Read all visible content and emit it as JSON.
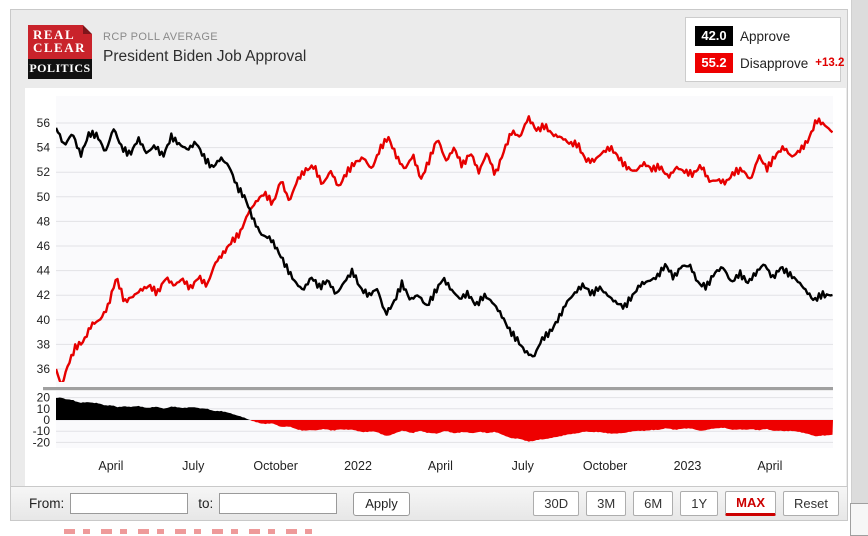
{
  "header": {
    "logo": {
      "line1": "REAL",
      "line2": "CLEAR",
      "line3": "POLITICS"
    },
    "kicker": "RCP POLL AVERAGE",
    "title": "President Biden Job Approval"
  },
  "legend": {
    "approve": {
      "value": "42.0",
      "label": "Approve",
      "color": "#000000"
    },
    "disapprove": {
      "value": "55.2",
      "label": "Disapprove",
      "spread": "+13.2",
      "color": "#ee0000"
    }
  },
  "controls": {
    "from_label": "From:",
    "to_label": "to:",
    "from_value": "",
    "to_value": "",
    "apply_label": "Apply",
    "range_buttons": [
      {
        "label": "30D",
        "active": false
      },
      {
        "label": "3M",
        "active": false
      },
      {
        "label": "6M",
        "active": false
      },
      {
        "label": "1Y",
        "active": false
      },
      {
        "label": "MAX",
        "active": true
      },
      {
        "label": "Reset",
        "active": false
      }
    ]
  },
  "colors": {
    "accent_red": "#e00000",
    "line_black": "#000000",
    "logo_red": "#c9232b",
    "grid": "#e2e2e6",
    "plot_bg": "#fafafc",
    "separator": "#a0a0a0"
  },
  "chart_data": {
    "type": "line",
    "title": "President Biden Job Approval",
    "x_unit": "months since Feb 2021",
    "x_range": [
      0,
      28.3
    ],
    "main_ylim": [
      34,
      57.5
    ],
    "main_yticks": [
      56,
      54,
      52,
      50,
      48,
      46,
      44,
      42,
      40,
      38,
      36
    ],
    "x_ticks": [
      [
        2,
        "April"
      ],
      [
        5,
        "July"
      ],
      [
        8,
        "October"
      ],
      [
        11,
        "2022"
      ],
      [
        14,
        "April"
      ],
      [
        17,
        "July"
      ],
      [
        20,
        "October"
      ],
      [
        23,
        "2023"
      ],
      [
        26,
        "April"
      ]
    ],
    "grid": true,
    "legend_position": "top-right",
    "series": [
      {
        "name": "Disapprove",
        "color": "#e60000",
        "final": 55.2,
        "anchors": [
          [
            0,
            36.0
          ],
          [
            0.2,
            34.8
          ],
          [
            0.4,
            36.2
          ],
          [
            0.7,
            37.6
          ],
          [
            1.0,
            38.0
          ],
          [
            1.3,
            39.6
          ],
          [
            1.6,
            40.2
          ],
          [
            1.9,
            41.3
          ],
          [
            2.2,
            43.4
          ],
          [
            2.5,
            41.2
          ],
          [
            2.8,
            41.8
          ],
          [
            3.1,
            42.6
          ],
          [
            3.4,
            43.0
          ],
          [
            3.7,
            42.2
          ],
          [
            4.0,
            43.2
          ],
          [
            4.3,
            42.6
          ],
          [
            4.6,
            43.4
          ],
          [
            4.9,
            42.8
          ],
          [
            5.2,
            43.6
          ],
          [
            5.5,
            42.6
          ],
          [
            5.8,
            44.4
          ],
          [
            6.1,
            45.4
          ],
          [
            6.4,
            46.6
          ],
          [
            6.7,
            47.2
          ],
          [
            7.0,
            48.6
          ],
          [
            7.3,
            49.4
          ],
          [
            7.6,
            50.2
          ],
          [
            7.9,
            49.6
          ],
          [
            8.2,
            51.6
          ],
          [
            8.5,
            49.6
          ],
          [
            8.8,
            51.2
          ],
          [
            9.1,
            52.0
          ],
          [
            9.4,
            52.6
          ],
          [
            9.7,
            51.2
          ],
          [
            10.0,
            52.2
          ],
          [
            10.3,
            50.6
          ],
          [
            10.6,
            51.8
          ],
          [
            10.9,
            52.8
          ],
          [
            11.2,
            53.4
          ],
          [
            11.5,
            52.4
          ],
          [
            11.8,
            53.8
          ],
          [
            12.1,
            54.6
          ],
          [
            12.4,
            53.2
          ],
          [
            12.7,
            52.4
          ],
          [
            13.0,
            53.6
          ],
          [
            13.3,
            51.4
          ],
          [
            13.6,
            52.8
          ],
          [
            13.9,
            54.6
          ],
          [
            14.2,
            53.0
          ],
          [
            14.5,
            54.2
          ],
          [
            14.8,
            52.6
          ],
          [
            15.1,
            53.4
          ],
          [
            15.4,
            51.8
          ],
          [
            15.7,
            53.6
          ],
          [
            16.0,
            52.0
          ],
          [
            16.3,
            53.8
          ],
          [
            16.6,
            55.2
          ],
          [
            16.9,
            54.6
          ],
          [
            17.2,
            56.4
          ],
          [
            17.5,
            55.6
          ],
          [
            17.8,
            56.0
          ],
          [
            18.1,
            55.0
          ],
          [
            18.4,
            54.6
          ],
          [
            18.7,
            54.2
          ],
          [
            19.0,
            54.4
          ],
          [
            19.3,
            53.2
          ],
          [
            19.6,
            53.0
          ],
          [
            19.9,
            53.4
          ],
          [
            20.2,
            53.8
          ],
          [
            20.5,
            53.2
          ],
          [
            20.8,
            52.6
          ],
          [
            21.1,
            52.2
          ],
          [
            21.4,
            52.6
          ],
          [
            21.7,
            52.0
          ],
          [
            22.0,
            52.4
          ],
          [
            22.3,
            51.8
          ],
          [
            22.6,
            52.6
          ],
          [
            22.9,
            52.0
          ],
          [
            23.2,
            51.6
          ],
          [
            23.5,
            52.4
          ],
          [
            23.8,
            51.4
          ],
          [
            24.1,
            51.6
          ],
          [
            24.4,
            51.2
          ],
          [
            24.7,
            51.8
          ],
          [
            25.0,
            52.0
          ],
          [
            25.3,
            51.4
          ],
          [
            25.6,
            53.6
          ],
          [
            25.9,
            52.4
          ],
          [
            26.2,
            53.2
          ],
          [
            26.5,
            53.8
          ],
          [
            26.8,
            53.2
          ],
          [
            27.1,
            54.0
          ],
          [
            27.4,
            54.8
          ],
          [
            27.7,
            56.2
          ],
          [
            28.0,
            55.6
          ],
          [
            28.3,
            55.2
          ]
        ]
      },
      {
        "name": "Approve",
        "color": "#000000",
        "final": 42.0,
        "anchors": [
          [
            0,
            55.6
          ],
          [
            0.3,
            54.0
          ],
          [
            0.6,
            55.3
          ],
          [
            0.9,
            53.6
          ],
          [
            1.2,
            55.2
          ],
          [
            1.5,
            54.8
          ],
          [
            1.8,
            53.4
          ],
          [
            2.1,
            55.6
          ],
          [
            2.4,
            54.2
          ],
          [
            2.7,
            53.6
          ],
          [
            3.0,
            54.6
          ],
          [
            3.3,
            53.3
          ],
          [
            3.6,
            54.1
          ],
          [
            3.9,
            53.5
          ],
          [
            4.2,
            55.1
          ],
          [
            4.5,
            54.2
          ],
          [
            4.8,
            53.6
          ],
          [
            5.1,
            54.3
          ],
          [
            5.4,
            53.3
          ],
          [
            5.7,
            52.6
          ],
          [
            6.0,
            53.2
          ],
          [
            6.3,
            52.3
          ],
          [
            6.6,
            50.6
          ],
          [
            6.9,
            49.9
          ],
          [
            7.2,
            48.3
          ],
          [
            7.5,
            47.0
          ],
          [
            7.8,
            46.5
          ],
          [
            8.1,
            45.3
          ],
          [
            8.4,
            44.2
          ],
          [
            8.7,
            43.3
          ],
          [
            9.0,
            42.6
          ],
          [
            9.3,
            43.4
          ],
          [
            9.6,
            42.4
          ],
          [
            9.9,
            43.1
          ],
          [
            10.2,
            42.2
          ],
          [
            10.5,
            43.3
          ],
          [
            10.8,
            44.0
          ],
          [
            11.1,
            42.3
          ],
          [
            11.4,
            41.8
          ],
          [
            11.7,
            42.6
          ],
          [
            12.0,
            40.7
          ],
          [
            12.3,
            41.5
          ],
          [
            12.6,
            42.8
          ],
          [
            12.9,
            41.4
          ],
          [
            13.2,
            42.0
          ],
          [
            13.5,
            41.3
          ],
          [
            13.8,
            42.4
          ],
          [
            14.1,
            43.3
          ],
          [
            14.4,
            42.2
          ],
          [
            14.7,
            41.6
          ],
          [
            15.0,
            42.3
          ],
          [
            15.3,
            41.4
          ],
          [
            15.6,
            42.0
          ],
          [
            15.9,
            41.2
          ],
          [
            16.2,
            40.3
          ],
          [
            16.5,
            39.3
          ],
          [
            16.8,
            38.6
          ],
          [
            17.1,
            37.5
          ],
          [
            17.4,
            36.8
          ],
          [
            17.7,
            38.2
          ],
          [
            18.0,
            39.0
          ],
          [
            18.3,
            40.3
          ],
          [
            18.6,
            41.6
          ],
          [
            18.9,
            42.1
          ],
          [
            19.2,
            42.6
          ],
          [
            19.5,
            42.0
          ],
          [
            19.8,
            42.8
          ],
          [
            20.1,
            42.2
          ],
          [
            20.4,
            41.4
          ],
          [
            20.7,
            40.8
          ],
          [
            21.0,
            41.8
          ],
          [
            21.3,
            43.0
          ],
          [
            21.6,
            43.4
          ],
          [
            21.9,
            43.6
          ],
          [
            22.2,
            44.3
          ],
          [
            22.5,
            43.2
          ],
          [
            22.8,
            44.4
          ],
          [
            23.1,
            44.6
          ],
          [
            23.4,
            43.1
          ],
          [
            23.7,
            42.6
          ],
          [
            24.0,
            43.6
          ],
          [
            24.3,
            44.2
          ],
          [
            24.6,
            43.2
          ],
          [
            24.9,
            44.0
          ],
          [
            25.2,
            43.0
          ],
          [
            25.5,
            43.6
          ],
          [
            25.8,
            44.4
          ],
          [
            26.1,
            43.5
          ],
          [
            26.4,
            44.5
          ],
          [
            26.7,
            43.8
          ],
          [
            27.0,
            43.0
          ],
          [
            27.3,
            42.2
          ],
          [
            27.6,
            41.6
          ],
          [
            27.9,
            42.3
          ],
          [
            28.3,
            42.0
          ]
        ]
      }
    ],
    "spread": {
      "definition": "Approve minus Disapprove",
      "yticks": [
        20,
        10,
        0,
        -10,
        -20
      ],
      "ylim": [
        -25,
        25
      ],
      "positive_color": "#000000",
      "negative_color": "#ee0000",
      "start_value": 19.6,
      "min_value": -19.6,
      "end_value": -13.2
    }
  }
}
